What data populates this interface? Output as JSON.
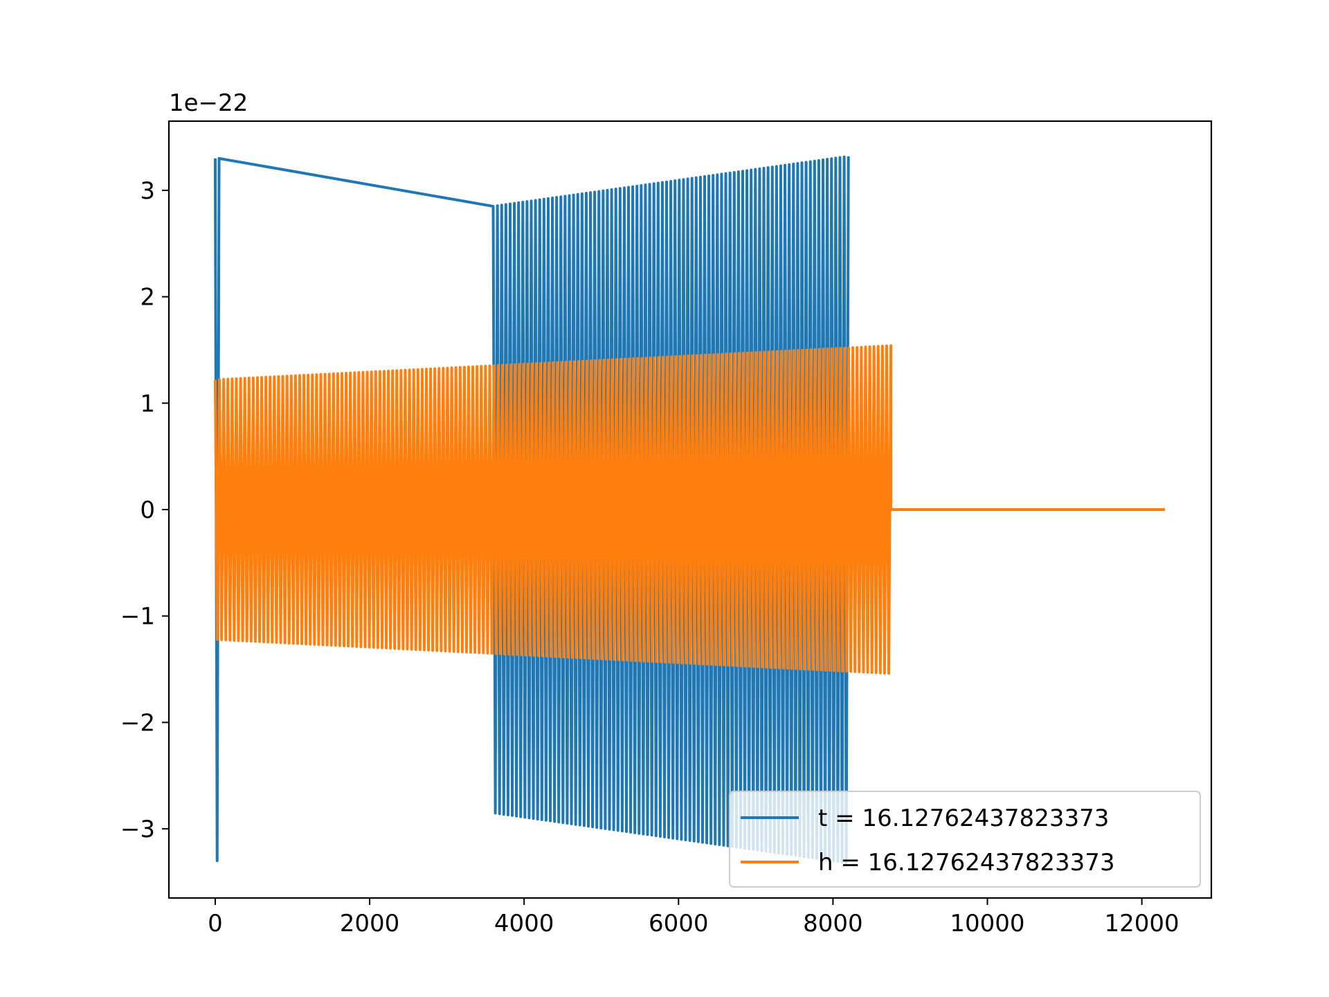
{
  "chart_data": {
    "type": "line",
    "title": "",
    "xlabel": "",
    "ylabel": "",
    "y_offset_label": "1e−22",
    "y_scale": 1e-22,
    "xlim": [
      -600,
      12900
    ],
    "ylim": [
      -3.65e-22,
      3.65e-22
    ],
    "x_ticks": [
      0,
      2000,
      4000,
      6000,
      8000,
      10000,
      12000
    ],
    "x_tick_labels": [
      "0",
      "2000",
      "4000",
      "6000",
      "8000",
      "10000",
      "12000"
    ],
    "y_ticks": [
      -3e-22,
      -2e-22,
      -1e-22,
      0,
      1e-22,
      2e-22,
      3e-22
    ],
    "y_tick_labels": [
      "−3",
      "−2",
      "−1",
      "0",
      "1",
      "2",
      "3"
    ],
    "grid": false,
    "legend": "lower-right",
    "series": [
      {
        "name": "t = 16.12762437823373",
        "color": "#1f77b4",
        "segments": [
          {
            "x_start": 0,
            "x_end": 50,
            "amp_start": 3.3e-22,
            "amp_end": 3.3e-22,
            "cycles": 1
          },
          {
            "x_start": 3600,
            "x_end": 8200,
            "amp_start": 2.85e-22,
            "amp_end": 3.32e-22,
            "cycles": 84
          }
        ]
      },
      {
        "name": "h = 16.12762437823373",
        "color": "#ff7f0e",
        "segments": [
          {
            "x_start": 0,
            "x_end": 8750,
            "amp_start": 1.22e-22,
            "amp_end": 1.54e-22,
            "cycles": 160
          },
          {
            "x_start": 8750,
            "x_end": 12300,
            "amp_start": 0,
            "amp_end": 0,
            "cycles": 0
          }
        ]
      }
    ]
  }
}
